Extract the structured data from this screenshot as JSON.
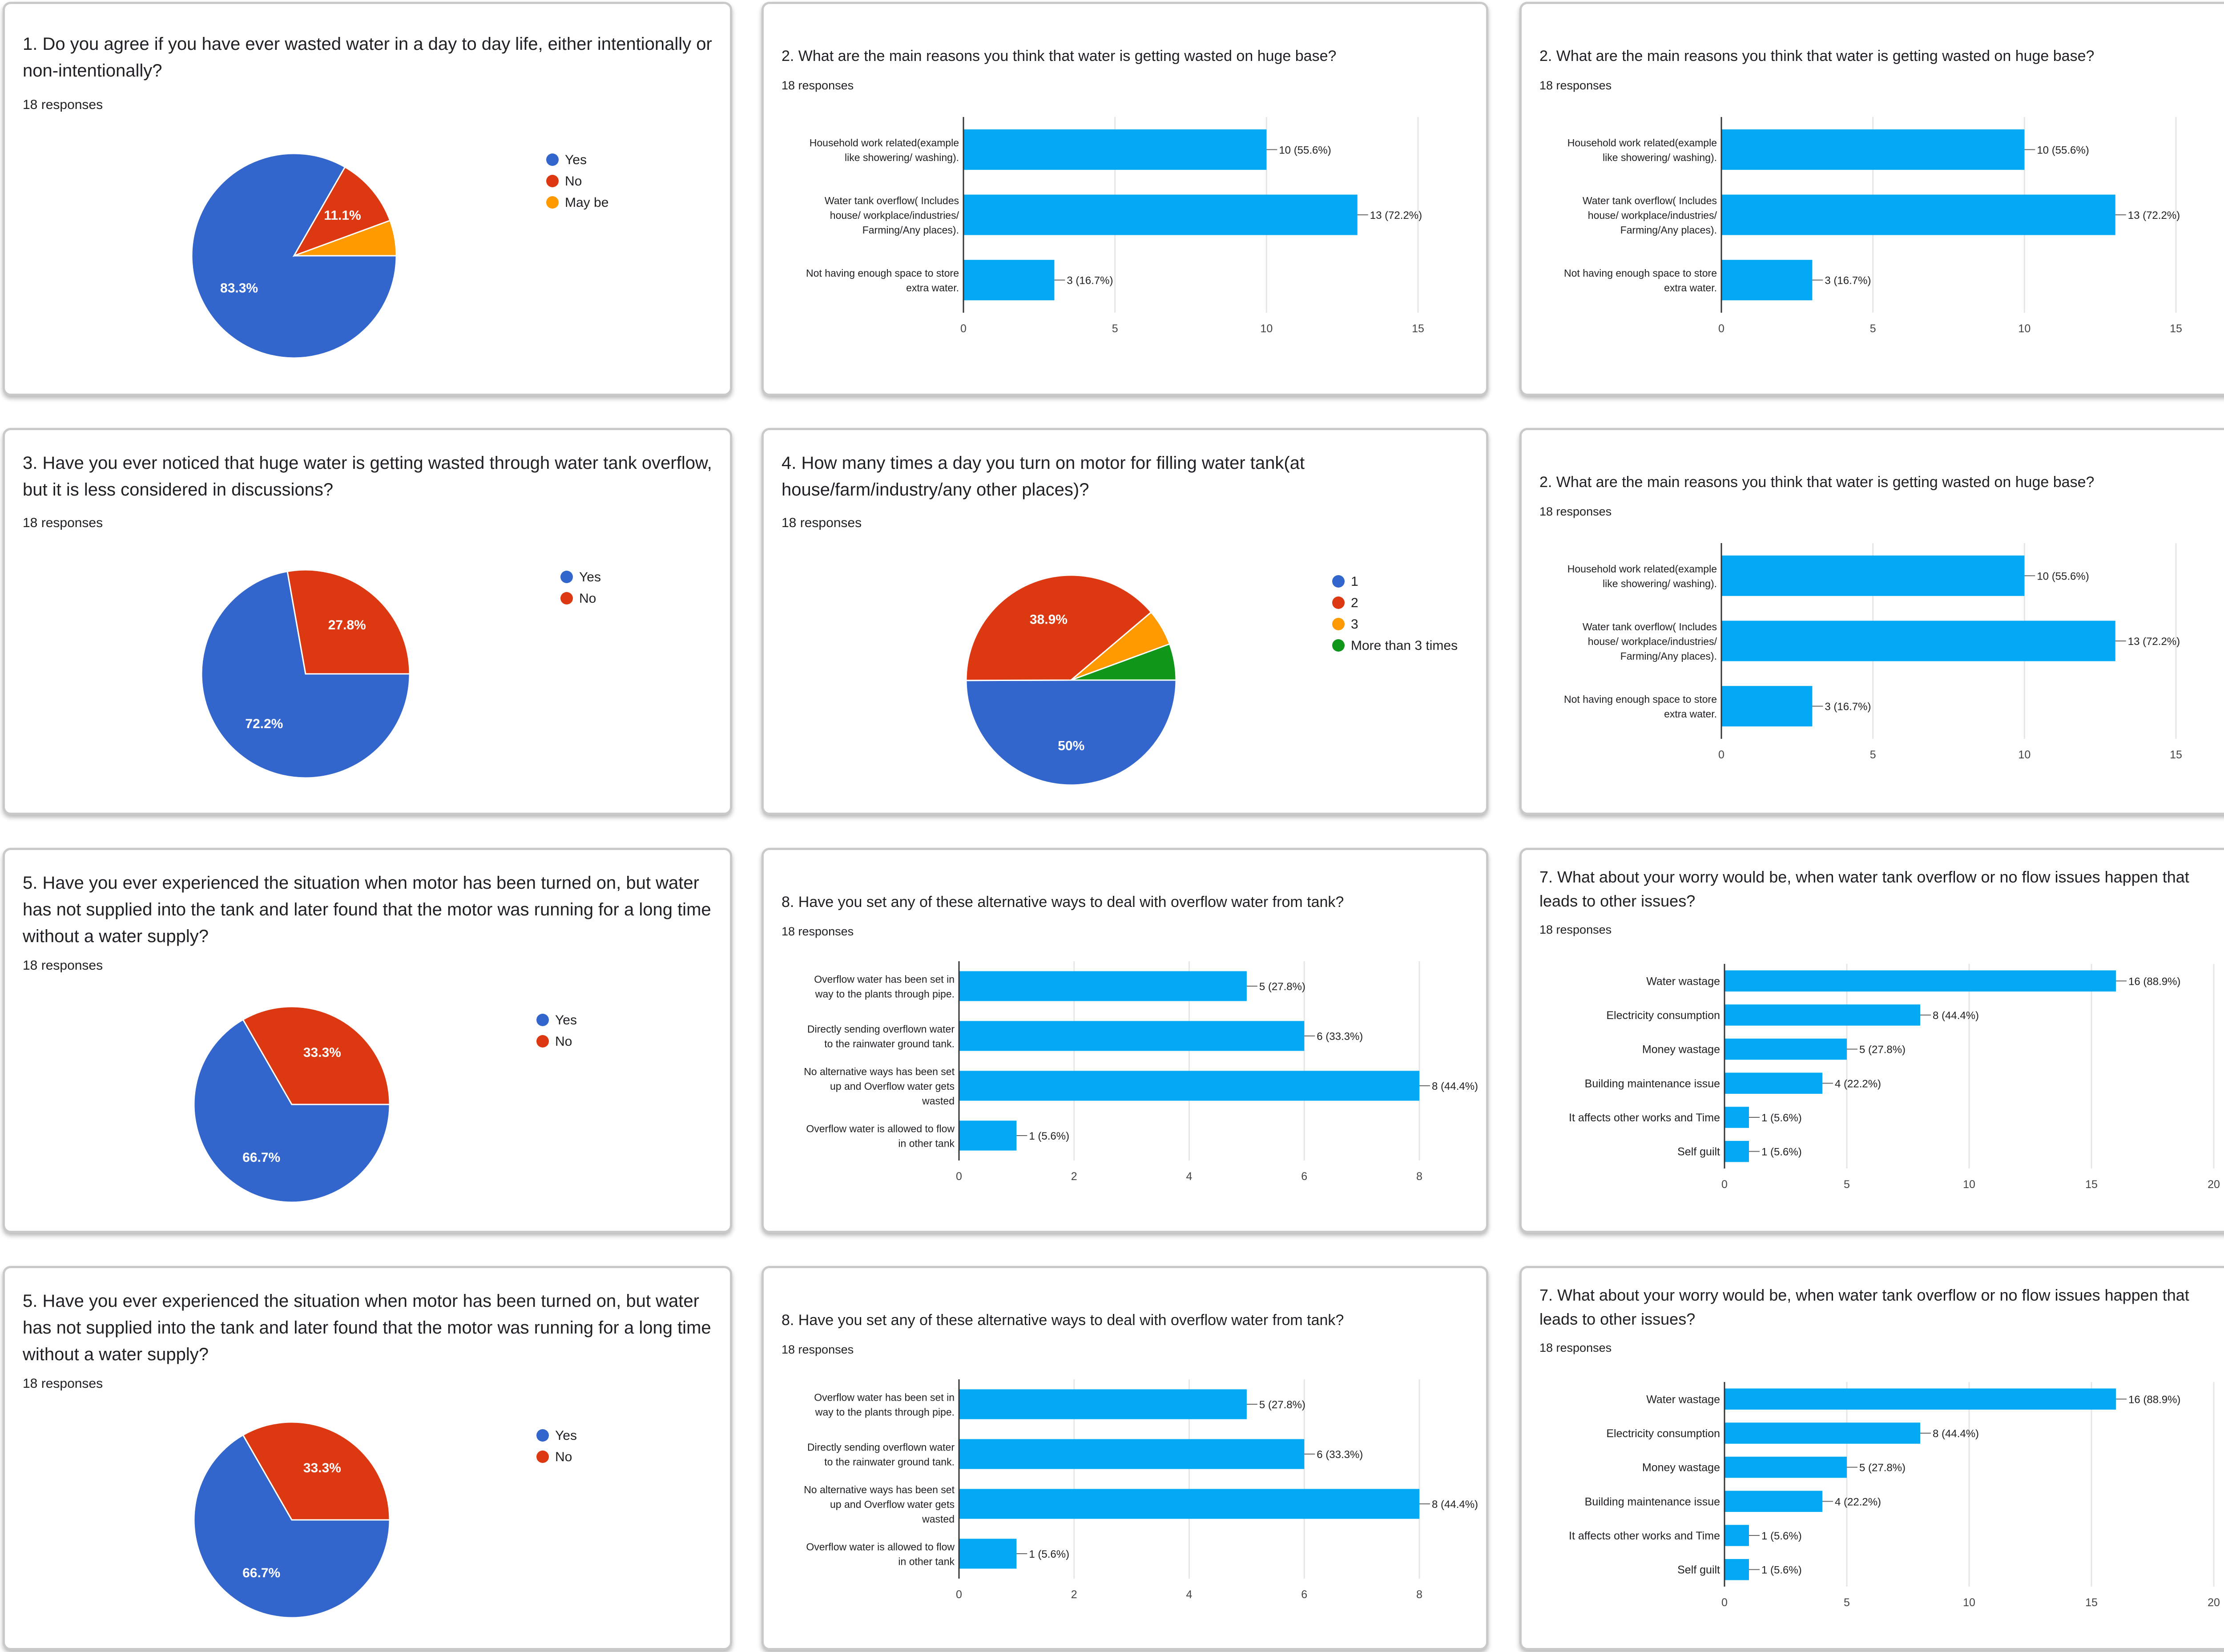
{
  "colors": {
    "blue": "#3366cc",
    "red": "#dc3912",
    "orange": "#ff9900",
    "green": "#109618",
    "bar": "#03a9f4",
    "grid": "#e6e6e6",
    "axis": "#333333"
  },
  "chart_data": [
    {
      "id": "q1",
      "type": "pie",
      "title": "1. Do you agree if you have ever wasted water in a day to day life, either intentionally or non-intentionally?",
      "responses": "18 responses",
      "slices": [
        {
          "label": "Yes",
          "value": 83.3,
          "display": "83.3%",
          "color": "#3366cc"
        },
        {
          "label": "No",
          "value": 11.1,
          "display": "11.1%",
          "color": "#dc3912"
        },
        {
          "label": "May be",
          "value": 5.6,
          "display": "",
          "color": "#ff9900"
        }
      ]
    },
    {
      "id": "q2a",
      "type": "bar",
      "title": "2. What are the main reasons you think that water is getting wasted on huge base?",
      "responses": "18 responses",
      "xlim": [
        0,
        15
      ],
      "ticks": [
        "0",
        "5",
        "10",
        "15"
      ],
      "bars": [
        {
          "label": [
            "Household work related(example",
            "like showering/ washing)."
          ],
          "value": 10,
          "display": "10 (55.6%)"
        },
        {
          "label": [
            "Water tank overflow( Includes",
            "house/ workplace/industries/",
            "Farming/Any places)."
          ],
          "value": 13,
          "display": "13 (72.2%)"
        },
        {
          "label": [
            "Not having enough space to store",
            "extra water."
          ],
          "value": 3,
          "display": "3 (16.7%)"
        }
      ]
    },
    {
      "id": "q2b",
      "type": "bar",
      "title": "2. What are the main reasons you think that water is getting wasted on huge base?",
      "responses": "18 responses",
      "xlim": [
        0,
        15
      ],
      "ticks": [
        "0",
        "5",
        "10",
        "15"
      ],
      "bars": [
        {
          "label": [
            "Household work related(example",
            "like showering/ washing)."
          ],
          "value": 10,
          "display": "10 (55.6%)"
        },
        {
          "label": [
            "Water tank overflow( Includes",
            "house/ workplace/industries/",
            "Farming/Any places)."
          ],
          "value": 13,
          "display": "13 (72.2%)"
        },
        {
          "label": [
            "Not having enough space to store",
            "extra water."
          ],
          "value": 3,
          "display": "3 (16.7%)"
        }
      ]
    },
    {
      "id": "q3",
      "type": "pie",
      "title": "3. Have you ever noticed that huge water is getting wasted through water tank overflow, but it is less considered in discussions?",
      "responses": "18 responses",
      "slices": [
        {
          "label": "Yes",
          "value": 72.2,
          "display": "72.2%",
          "color": "#3366cc"
        },
        {
          "label": "No",
          "value": 27.8,
          "display": "27.8%",
          "color": "#dc3912"
        }
      ]
    },
    {
      "id": "q4",
      "type": "pie",
      "title": "4. How many times a day you turn on motor for filling water tank(at house/farm/industry/any other places)?",
      "responses": "18 responses",
      "slices": [
        {
          "label": "1",
          "value": 50,
          "display": "50%",
          "color": "#3366cc"
        },
        {
          "label": "2",
          "value": 38.9,
          "display": "38.9%",
          "color": "#dc3912"
        },
        {
          "label": "3",
          "value": 5.6,
          "display": "",
          "color": "#ff9900"
        },
        {
          "label": "More than 3 times",
          "value": 5.6,
          "display": "",
          "color": "#109618"
        }
      ]
    },
    {
      "id": "q2c",
      "type": "bar",
      "title": "2. What are the main reasons you think that water is getting wasted on huge base?",
      "responses": "18 responses",
      "xlim": [
        0,
        15
      ],
      "ticks": [
        "0",
        "5",
        "10",
        "15"
      ],
      "bars": [
        {
          "label": [
            "Household work related(example",
            "like showering/ washing)."
          ],
          "value": 10,
          "display": "10 (55.6%)"
        },
        {
          "label": [
            "Water tank overflow( Includes",
            "house/ workplace/industries/",
            "Farming/Any places)."
          ],
          "value": 13,
          "display": "13 (72.2%)"
        },
        {
          "label": [
            "Not having enough space to store",
            "extra water."
          ],
          "value": 3,
          "display": "3 (16.7%)"
        }
      ]
    },
    {
      "id": "q5a",
      "type": "pie",
      "title": "5. Have you ever experienced the situation when motor has been turned on, but water has not supplied into the tank and later found that the motor was running for a long time without a water supply?",
      "responses": "18 responses",
      "slices": [
        {
          "label": "Yes",
          "value": 66.7,
          "display": "66.7%",
          "color": "#3366cc"
        },
        {
          "label": "No",
          "value": 33.3,
          "display": "33.3%",
          "color": "#dc3912"
        }
      ]
    },
    {
      "id": "q8a",
      "type": "bar",
      "title": "8. Have you set any of these alternative ways to deal with overflow water from tank?",
      "responses": "18 responses",
      "xlim": [
        0,
        8
      ],
      "ticks": [
        "0",
        "2",
        "4",
        "6",
        "8"
      ],
      "bars": [
        {
          "label": [
            "Overflow water has been set in",
            "way to the plants through pipe."
          ],
          "value": 5,
          "display": "5 (27.8%)"
        },
        {
          "label": [
            "Directly sending overflown water",
            "to the rainwater ground tank."
          ],
          "value": 6,
          "display": "6 (33.3%)"
        },
        {
          "label": [
            "No alternative ways has been set",
            "up and Overflow water gets",
            "wasted"
          ],
          "value": 8,
          "display": "8 (44.4%)"
        },
        {
          "label": [
            "Overflow water is allowed to flow",
            "in other tank"
          ],
          "value": 1,
          "display": "1 (5.6%)"
        }
      ]
    },
    {
      "id": "q7a",
      "type": "bar",
      "title": "7. What about your worry would be, when water tank overflow or no flow issues happen that leads to other issues?",
      "responses": "18 responses",
      "xlim": [
        0,
        20
      ],
      "ticks": [
        "0",
        "5",
        "10",
        "15",
        "20"
      ],
      "bars": [
        {
          "label": [
            "Water wastage"
          ],
          "value": 16,
          "display": "16 (88.9%)"
        },
        {
          "label": [
            "Electricity consumption"
          ],
          "value": 8,
          "display": "8 (44.4%)"
        },
        {
          "label": [
            "Money wastage"
          ],
          "value": 5,
          "display": "5 (27.8%)"
        },
        {
          "label": [
            "Building maintenance issue"
          ],
          "value": 4,
          "display": "4 (22.2%)"
        },
        {
          "label": [
            "It affects other works and Time"
          ],
          "value": 1,
          "display": "1 (5.6%)"
        },
        {
          "label": [
            "Self guilt"
          ],
          "value": 1,
          "display": "1 (5.6%)"
        }
      ]
    },
    {
      "id": "q5b",
      "type": "pie",
      "title": "5. Have you ever experienced the situation when motor has been turned on, but water has not supplied into the tank and later found that the motor was running for a long time without a water supply?",
      "responses": "18 responses",
      "slices": [
        {
          "label": "Yes",
          "value": 66.7,
          "display": "66.7%",
          "color": "#3366cc"
        },
        {
          "label": "No",
          "value": 33.3,
          "display": "33.3%",
          "color": "#dc3912"
        }
      ]
    },
    {
      "id": "q8b",
      "type": "bar",
      "title": "8. Have you set any of these alternative ways to deal with overflow water from tank?",
      "responses": "18 responses",
      "xlim": [
        0,
        8
      ],
      "ticks": [
        "0",
        "2",
        "4",
        "6",
        "8"
      ],
      "bars": [
        {
          "label": [
            "Overflow water has been set in",
            "way to the plants through pipe."
          ],
          "value": 5,
          "display": "5 (27.8%)"
        },
        {
          "label": [
            "Directly sending overflown water",
            "to the rainwater ground tank."
          ],
          "value": 6,
          "display": "6 (33.3%)"
        },
        {
          "label": [
            "No alternative ways has been set",
            "up and Overflow water gets",
            "wasted"
          ],
          "value": 8,
          "display": "8 (44.4%)"
        },
        {
          "label": [
            "Overflow water is allowed to flow",
            "in other tank"
          ],
          "value": 1,
          "display": "1 (5.6%)"
        }
      ]
    },
    {
      "id": "q7b",
      "type": "bar",
      "title": "7. What about your worry would be, when water tank overflow or no flow issues happen that leads to other issues?",
      "responses": "18 responses",
      "xlim": [
        0,
        20
      ],
      "ticks": [
        "0",
        "5",
        "10",
        "15",
        "20"
      ],
      "bars": [
        {
          "label": [
            "Water wastage"
          ],
          "value": 16,
          "display": "16 (88.9%)"
        },
        {
          "label": [
            "Electricity consumption"
          ],
          "value": 8,
          "display": "8 (44.4%)"
        },
        {
          "label": [
            "Money wastage"
          ],
          "value": 5,
          "display": "5 (27.8%)"
        },
        {
          "label": [
            "Building maintenance issue"
          ],
          "value": 4,
          "display": "4 (22.2%)"
        },
        {
          "label": [
            "It affects other works and Time"
          ],
          "value": 1,
          "display": "1 (5.6%)"
        },
        {
          "label": [
            "Self guilt"
          ],
          "value": 1,
          "display": "1 (5.6%)"
        }
      ]
    }
  ]
}
